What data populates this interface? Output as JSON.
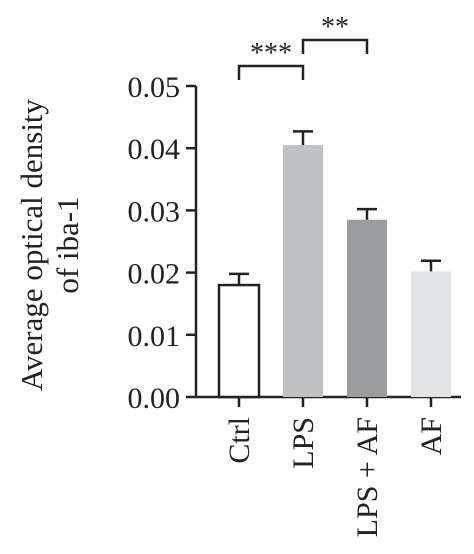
{
  "chart_data": {
    "type": "bar",
    "title": "",
    "xlabel": "",
    "ylabel": "Average optical density of iba-1",
    "ylabel_lines": [
      "Average optical density",
      "of iba-1"
    ],
    "categories": [
      "Ctrl",
      "LPS",
      "LPS + AF",
      "AF"
    ],
    "values": [
      0.018,
      0.0405,
      0.0285,
      0.0202
    ],
    "errors": [
      0.0018,
      0.0022,
      0.0017,
      0.0017
    ],
    "bar_colors": [
      "#ffffff",
      "#c0c1c3",
      "#9c9d9f",
      "#e2e3e4"
    ],
    "ylim": [
      0,
      0.05
    ],
    "yticks": [
      "0.00",
      "0.01",
      "0.02",
      "0.03",
      "0.04",
      "0.05"
    ],
    "significance": [
      {
        "from": "Ctrl",
        "to": "LPS",
        "label": "***"
      },
      {
        "from": "LPS",
        "to": "LPS + AF",
        "label": "**"
      }
    ],
    "grid": false
  }
}
